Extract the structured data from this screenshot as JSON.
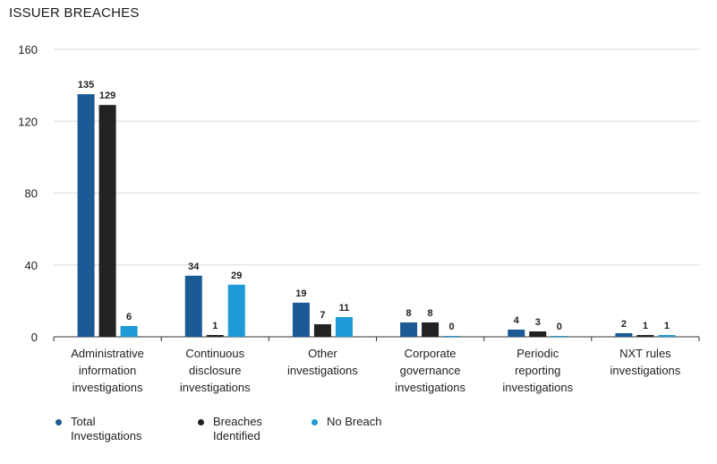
{
  "chart_data": {
    "type": "bar",
    "title": "ISSUER BREACHES",
    "categories": [
      [
        "Administrative",
        "information",
        "investigations"
      ],
      [
        "Continuous",
        "disclosure",
        "investigations"
      ],
      [
        "Other",
        "investigations"
      ],
      [
        "Corporate",
        "governance",
        "investigations"
      ],
      [
        "Periodic",
        "reporting",
        "investigations"
      ],
      [
        "NXT rules",
        "investigations"
      ]
    ],
    "series": [
      {
        "name": "Total Investigations",
        "legend_lines": [
          "Total",
          "Investigations"
        ],
        "color": "#1b5a95",
        "values": [
          135,
          34,
          19,
          8,
          4,
          2
        ]
      },
      {
        "name": "Breaches Identified",
        "legend_lines": [
          "Breaches",
          "Identified"
        ],
        "color": "#222222",
        "values": [
          129,
          1,
          7,
          8,
          3,
          1
        ]
      },
      {
        "name": "No Breach",
        "legend_lines": [
          "No Breach"
        ],
        "color": "#1e9ad6",
        "values": [
          6,
          29,
          11,
          0,
          0,
          1
        ]
      }
    ],
    "yticks": [
      0,
      40,
      80,
      120,
      160
    ],
    "ylim": [
      0,
      160
    ],
    "grid": true,
    "legend_position": "bottom-left"
  }
}
